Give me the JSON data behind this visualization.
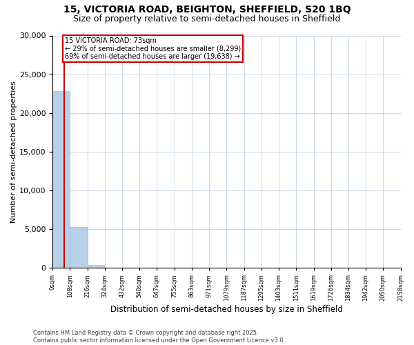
{
  "title": "15, VICTORIA ROAD, BEIGHTON, SHEFFIELD, S20 1BQ",
  "subtitle": "Size of property relative to semi-detached houses in Sheffield",
  "xlabel": "Distribution of semi-detached houses by size in Sheffield",
  "ylabel": "Number of semi-detached properties",
  "property_size": 73,
  "bin_edges": [
    0,
    108,
    216,
    324,
    432,
    540,
    647,
    755,
    863,
    971,
    1079,
    1187,
    1295,
    1403,
    1511,
    1619,
    1726,
    1834,
    1942,
    2050,
    2158
  ],
  "bar_values": [
    22800,
    5300,
    350,
    70,
    20,
    8,
    4,
    2,
    1,
    1,
    0,
    0,
    0,
    0,
    0,
    0,
    0,
    0,
    0,
    0
  ],
  "ylim": [
    0,
    30000
  ],
  "yticks": [
    0,
    5000,
    10000,
    15000,
    20000,
    25000,
    30000
  ],
  "bar_color": "#b8d0e8",
  "bar_edgecolor": "#a0bcd8",
  "property_line_color": "#cc0000",
  "annotation_line1": "15 VICTORIA ROAD: 73sqm",
  "annotation_line2": "← 29% of semi-detached houses are smaller (8,299)",
  "annotation_line3": "69% of semi-detached houses are larger (19,638) →",
  "annotation_box_color": "#cc0000",
  "footer_text": "Contains HM Land Registry data © Crown copyright and database right 2025.\nContains public sector information licensed under the Open Government Licence v3.0.",
  "background_color": "#ffffff",
  "grid_color": "#c8d8e8",
  "title_fontsize": 10,
  "subtitle_fontsize": 9,
  "footer_fontsize": 6
}
